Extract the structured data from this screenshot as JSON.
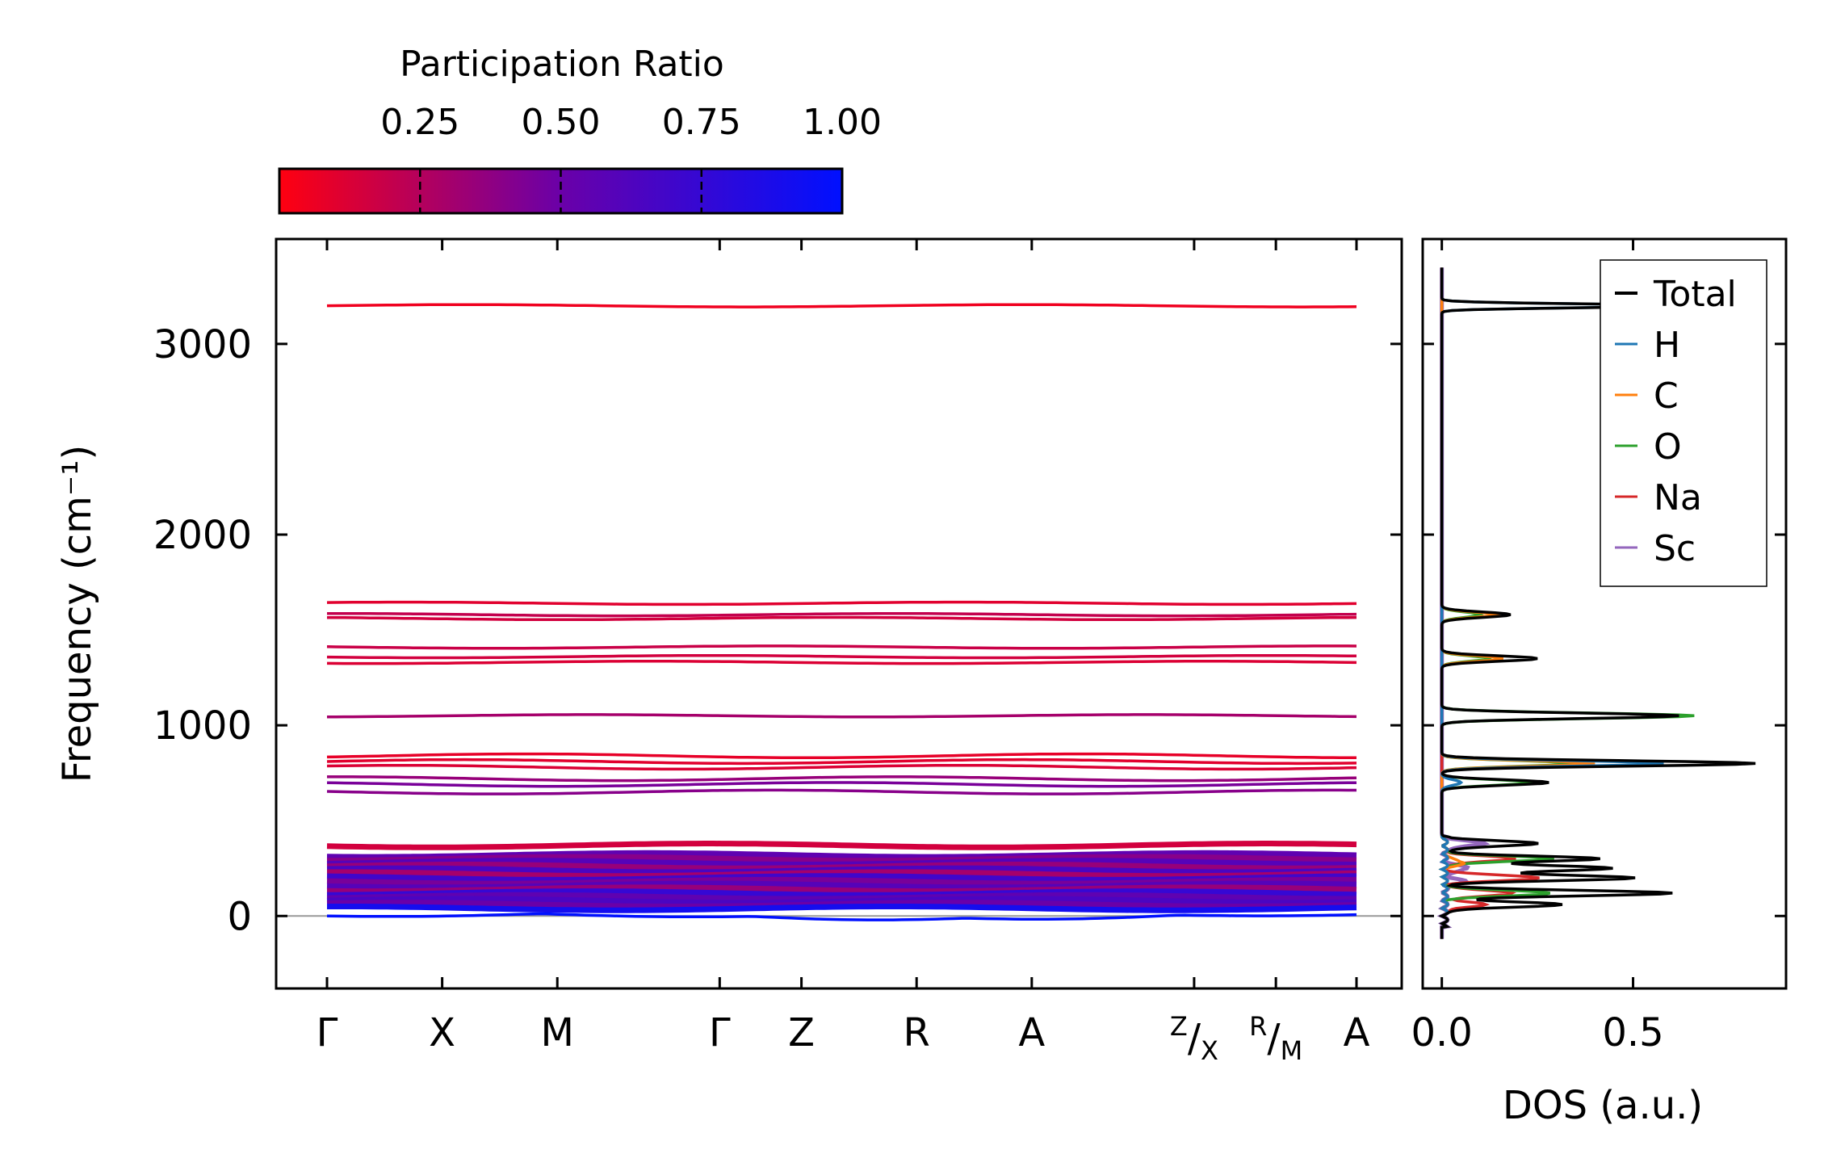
{
  "chart_data": {
    "type": "line",
    "title": "",
    "colorbar": {
      "label": "Participation Ratio",
      "ticks": [
        0.25,
        0.5,
        0.75,
        1.0
      ],
      "tick_labels": [
        "0.25",
        "0.50",
        "0.75",
        "1.00"
      ],
      "range": [
        0.0,
        1.0
      ],
      "color_low": "#ff0010",
      "color_mid": "#6a00a8",
      "color_high": "#0010ff"
    },
    "band_structure": {
      "ylabel": "Frequency (cm⁻¹)",
      "ylim": [
        -380,
        3550
      ],
      "yticks": [
        0,
        1000,
        2000,
        3000
      ],
      "ytick_labels": [
        "0",
        "1000",
        "2000",
        "3000"
      ],
      "kpath_labels": [
        "Γ",
        "X",
        "M",
        "Γ",
        "Z",
        "R",
        "A",
        "Z/X",
        "R/M",
        "A"
      ],
      "kpath_positions": [
        0,
        1.0,
        2.0,
        3.41,
        4.12,
        5.12,
        6.12,
        7.53,
        8.24,
        8.94
      ],
      "bands": [
        {
          "freq": 3200,
          "pr": 0.05
        },
        {
          "freq": 1640,
          "pr": 0.1
        },
        {
          "freq": 1580,
          "pr": 0.2
        },
        {
          "freq": 1560,
          "pr": 0.15
        },
        {
          "freq": 1410,
          "pr": 0.18
        },
        {
          "freq": 1360,
          "pr": 0.15
        },
        {
          "freq": 1330,
          "pr": 0.12
        },
        {
          "freq": 1050,
          "pr": 0.3
        },
        {
          "freq": 840,
          "pr": 0.08
        },
        {
          "freq": 810,
          "pr": 0.1
        },
        {
          "freq": 780,
          "pr": 0.12
        },
        {
          "freq": 720,
          "pr": 0.35
        },
        {
          "freq": 690,
          "pr": 0.45
        },
        {
          "freq": 650,
          "pr": 0.4
        },
        {
          "freq": 370,
          "pr": 0.15
        },
        {
          "freq": 320,
          "pr": 0.55
        },
        {
          "freq": 300,
          "pr": 0.4
        },
        {
          "freq": 280,
          "pr": 0.6
        },
        {
          "freq": 260,
          "pr": 0.35
        },
        {
          "freq": 240,
          "pr": 0.65
        },
        {
          "freq": 220,
          "pr": 0.3
        },
        {
          "freq": 200,
          "pr": 0.7
        },
        {
          "freq": 180,
          "pr": 0.45
        },
        {
          "freq": 160,
          "pr": 0.6
        },
        {
          "freq": 140,
          "pr": 0.35
        },
        {
          "freq": 120,
          "pr": 0.75
        },
        {
          "freq": 100,
          "pr": 0.55
        },
        {
          "freq": 80,
          "pr": 0.65
        },
        {
          "freq": 60,
          "pr": 0.5
        },
        {
          "freq": 40,
          "pr": 0.9
        },
        {
          "freq": 0,
          "pr": 1.0
        }
      ],
      "zero_line": 0
    },
    "dos": {
      "xlabel": "DOS (a.u.)",
      "xlim": [
        -0.05,
        0.9
      ],
      "xticks": [
        0.0,
        0.5
      ],
      "xtick_labels": [
        "0.0",
        "0.5"
      ],
      "legend_position": "top-right",
      "series": [
        {
          "name": "Total",
          "color": "#000000",
          "peaks": [
            [
              3200,
              0.62
            ],
            [
              1580,
              0.18
            ],
            [
              1350,
              0.25
            ],
            [
              1050,
              0.62
            ],
            [
              800,
              0.82
            ],
            [
              700,
              0.28
            ],
            [
              380,
              0.24
            ],
            [
              300,
              0.4
            ],
            [
              250,
              0.44
            ],
            [
              200,
              0.5
            ],
            [
              120,
              0.6
            ],
            [
              60,
              0.3
            ]
          ]
        },
        {
          "name": "H",
          "color": "#1f77b4",
          "peaks": [
            [
              3200,
              0.6
            ],
            [
              800,
              0.58
            ],
            [
              700,
              0.05
            ]
          ]
        },
        {
          "name": "C",
          "color": "#ff7f0e",
          "peaks": [
            [
              1580,
              0.14
            ],
            [
              1350,
              0.16
            ],
            [
              800,
              0.4
            ],
            [
              280,
              0.05
            ]
          ]
        },
        {
          "name": "O",
          "color": "#2ca02c",
          "peaks": [
            [
              1580,
              0.1
            ],
            [
              1350,
              0.12
            ],
            [
              1050,
              0.66
            ],
            [
              800,
              0.35
            ],
            [
              700,
              0.24
            ],
            [
              300,
              0.28
            ],
            [
              120,
              0.28
            ]
          ]
        },
        {
          "name": "Na",
          "color": "#d62728",
          "peaks": [
            [
              300,
              0.18
            ],
            [
              200,
              0.25
            ],
            [
              120,
              0.18
            ],
            [
              60,
              0.1
            ]
          ]
        },
        {
          "name": "Sc",
          "color": "#9467bd",
          "peaks": [
            [
              380,
              0.1
            ],
            [
              250,
              0.06
            ],
            [
              180,
              0.05
            ]
          ]
        }
      ]
    }
  }
}
